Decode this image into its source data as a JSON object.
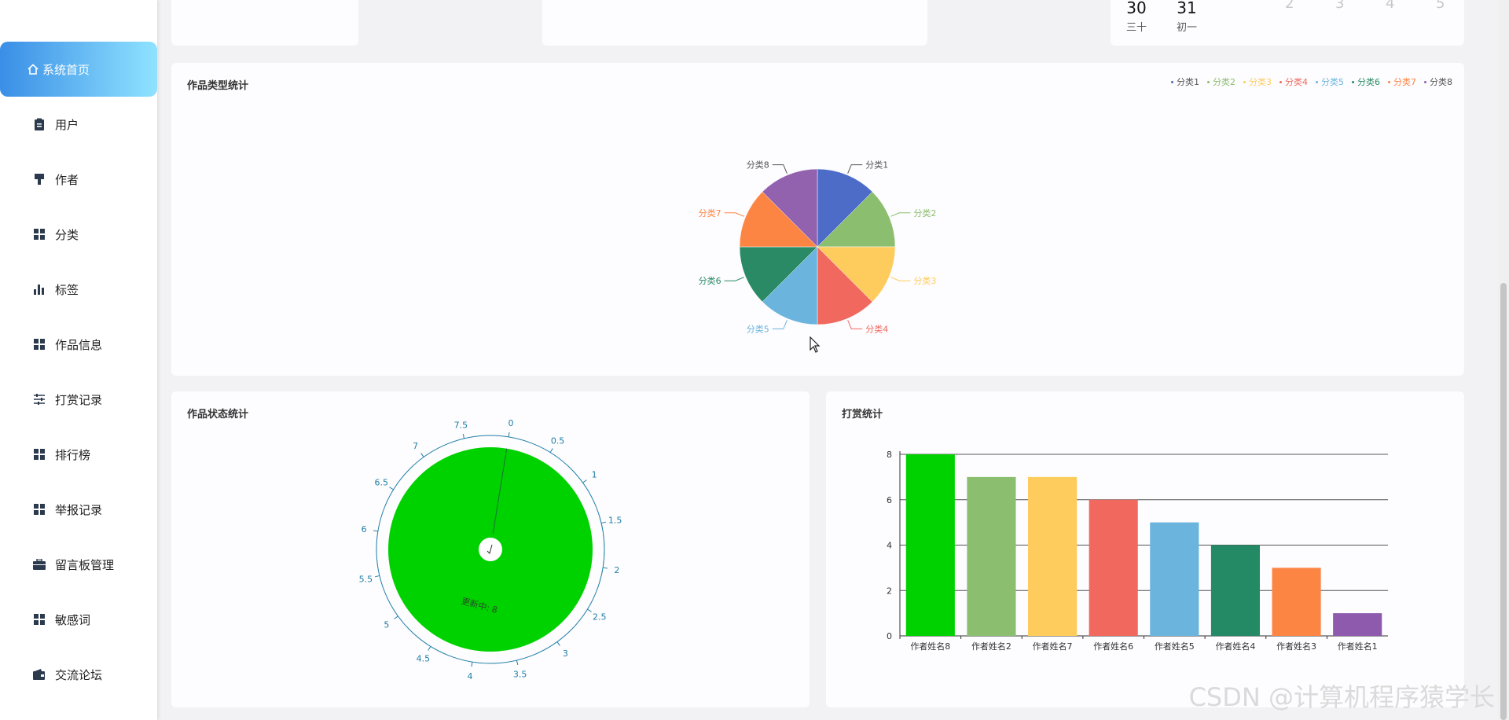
{
  "sidebar": {
    "items": [
      {
        "label": "系统首页",
        "icon": "home-icon"
      },
      {
        "label": "用户",
        "icon": "clipboard-icon"
      },
      {
        "label": "作者",
        "icon": "brush-icon"
      },
      {
        "label": "分类",
        "icon": "grid-icon"
      },
      {
        "label": "标签",
        "icon": "bar-chart-icon"
      },
      {
        "label": "作品信息",
        "icon": "grid-icon"
      },
      {
        "label": "打赏记录",
        "icon": "sliders-icon"
      },
      {
        "label": "排行榜",
        "icon": "grid-icon"
      },
      {
        "label": "举报记录",
        "icon": "grid-icon"
      },
      {
        "label": "留言板管理",
        "icon": "briefcase-icon"
      },
      {
        "label": "敏感词",
        "icon": "grid-icon"
      },
      {
        "label": "交流论坛",
        "icon": "wallet-icon"
      }
    ],
    "active_index": 0
  },
  "calendar": {
    "days": [
      {
        "num": "30",
        "sub": "三十"
      },
      {
        "num": "31",
        "sub": "初一"
      }
    ],
    "faded": [
      "2",
      "3",
      "4",
      "5"
    ]
  },
  "type_chart": {
    "title": "作品类型统计",
    "legend": [
      "分类1",
      "分类2",
      "分类3",
      "分类4",
      "分类5",
      "分类6",
      "分类7",
      "分类8"
    ]
  },
  "status_chart": {
    "title": "作品状态统计",
    "ticks": [
      "0",
      "0.5",
      "1",
      "1.5",
      "2",
      "2.5",
      "3",
      "3.5",
      "4",
      "4.5",
      "5",
      "5.5",
      "6",
      "6.5",
      "7",
      "7.5"
    ],
    "label": "更新中: 8"
  },
  "reward_chart": {
    "title": "打赏统计"
  },
  "colors": {
    "series": [
      "#00d200",
      "#8bbe6e",
      "#fecc5c",
      "#f0685e",
      "#6ab4dd",
      "#238a65",
      "#fd8544",
      "#8e5aae"
    ],
    "pie": [
      "#4c6cc8",
      "#8bbe6e",
      "#fecc5c",
      "#f0685e",
      "#6ab4dd",
      "#298a65",
      "#fd8544",
      "#9262af"
    ],
    "active_gradient_start": "#3a8ee6",
    "active_gradient_end": "#8fe3ff",
    "gauge_fill": "#00d200",
    "gauge_axis": "#1f7fa6"
  },
  "chart_data": [
    {
      "type": "pie",
      "title": "作品类型统计",
      "categories": [
        "分类1",
        "分类2",
        "分类3",
        "分类4",
        "分类5",
        "分类6",
        "分类7",
        "分类8"
      ],
      "values": [
        1,
        1,
        1,
        1,
        1,
        1,
        1,
        1
      ]
    },
    {
      "type": "gauge",
      "title": "作品状态统计",
      "series": [
        {
          "name": "更新中",
          "values": [
            8
          ]
        }
      ],
      "range": [
        0,
        8
      ]
    },
    {
      "type": "bar",
      "title": "打赏统计",
      "categories": [
        "作者姓名8",
        "作者姓名2",
        "作者姓名7",
        "作者姓名6",
        "作者姓名5",
        "作者姓名4",
        "作者姓名3",
        "作者姓名1"
      ],
      "values": [
        8,
        7,
        7,
        6,
        5,
        4,
        3,
        1
      ],
      "ylim": [
        0,
        8
      ],
      "yticks": [
        "0",
        "2",
        "4",
        "6",
        "8"
      ],
      "grid": true
    }
  ],
  "watermark": "CSDN @计算机程序猿学长"
}
